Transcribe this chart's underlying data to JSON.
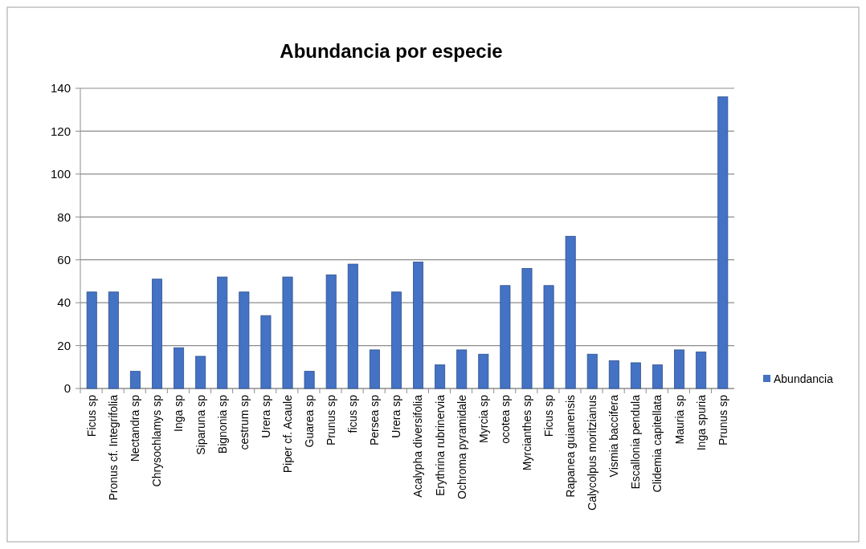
{
  "chart_data": {
    "type": "bar",
    "title": "Abundancia por especie",
    "categories": [
      "Ficus sp",
      "Pronus cf. Integrifolia",
      "Nectandra sp",
      "Chrysochlamys sp",
      "Inga sp",
      "Siparuna sp",
      "Bignonia sp",
      "cestrum sp",
      "Urera sp",
      "Piper cf. Acaule",
      "Guarea sp",
      "Prunus sp",
      "ficus sp",
      "Persea sp",
      "Urera sp",
      "Acalypha diversifolia",
      "Erythrina rubrinervia",
      "Ochroma pyramidale",
      "Myrcia sp",
      "ocotea sp",
      "Myrcianthes sp",
      "Ficus sp",
      "Rapanea  guianensis",
      "Calycolpus moritzianus",
      "Vismia baccifera",
      "Escallonia pendula",
      "Clidemia capitellata",
      "Mauria sp",
      "Inga spuria",
      "Prunus sp"
    ],
    "series": [
      {
        "name": "Abundancia",
        "color": "#4472c4",
        "values": [
          45,
          45,
          8,
          51,
          19,
          15,
          52,
          45,
          34,
          52,
          8,
          53,
          58,
          18,
          45,
          59,
          11,
          18,
          16,
          48,
          56,
          48,
          71,
          16,
          13,
          12,
          11,
          18,
          17,
          136
        ]
      }
    ],
    "ylim": [
      0,
      140
    ],
    "yticks": [
      0,
      20,
      40,
      60,
      80,
      100,
      120,
      140
    ],
    "grid": "y",
    "legend": "right"
  }
}
